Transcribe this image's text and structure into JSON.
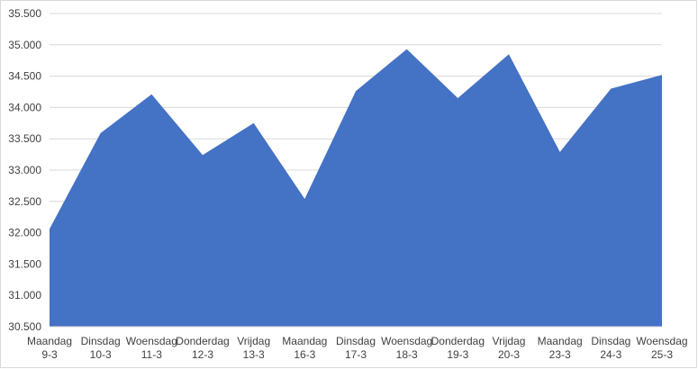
{
  "chart_data": {
    "type": "area",
    "categories": [
      "Maandag 9-3",
      "Dinsdag 10-3",
      "Woensdag 11-3",
      "Donderdag 12-3",
      "Vrijdag 13-3",
      "Maandag 16-3",
      "Dinsdag 17-3",
      "Woensdag 18-3",
      "Donderdag 19-3",
      "Vrijdag 20-3",
      "Maandag 23-3",
      "Dinsdag 24-3",
      "Woensdag 25-3"
    ],
    "values": [
      32060,
      33590,
      34210,
      33240,
      33750,
      32540,
      34260,
      34930,
      34150,
      34850,
      33290,
      34300,
      34520
    ],
    "color": "#4472c4",
    "ylim": [
      30500,
      35500
    ],
    "yticks": [
      {
        "value": 30500,
        "label": "30.500"
      },
      {
        "value": 31000,
        "label": "31.000"
      },
      {
        "value": 31500,
        "label": "31.500"
      },
      {
        "value": 32000,
        "label": "32.000"
      },
      {
        "value": 32500,
        "label": "32.500"
      },
      {
        "value": 33000,
        "label": "33.000"
      },
      {
        "value": 33500,
        "label": "33.500"
      },
      {
        "value": 34000,
        "label": "34.000"
      },
      {
        "value": 34500,
        "label": "34.500"
      },
      {
        "value": 35000,
        "label": "35.000"
      },
      {
        "value": 35500,
        "label": "35.500"
      }
    ],
    "grid": true
  }
}
